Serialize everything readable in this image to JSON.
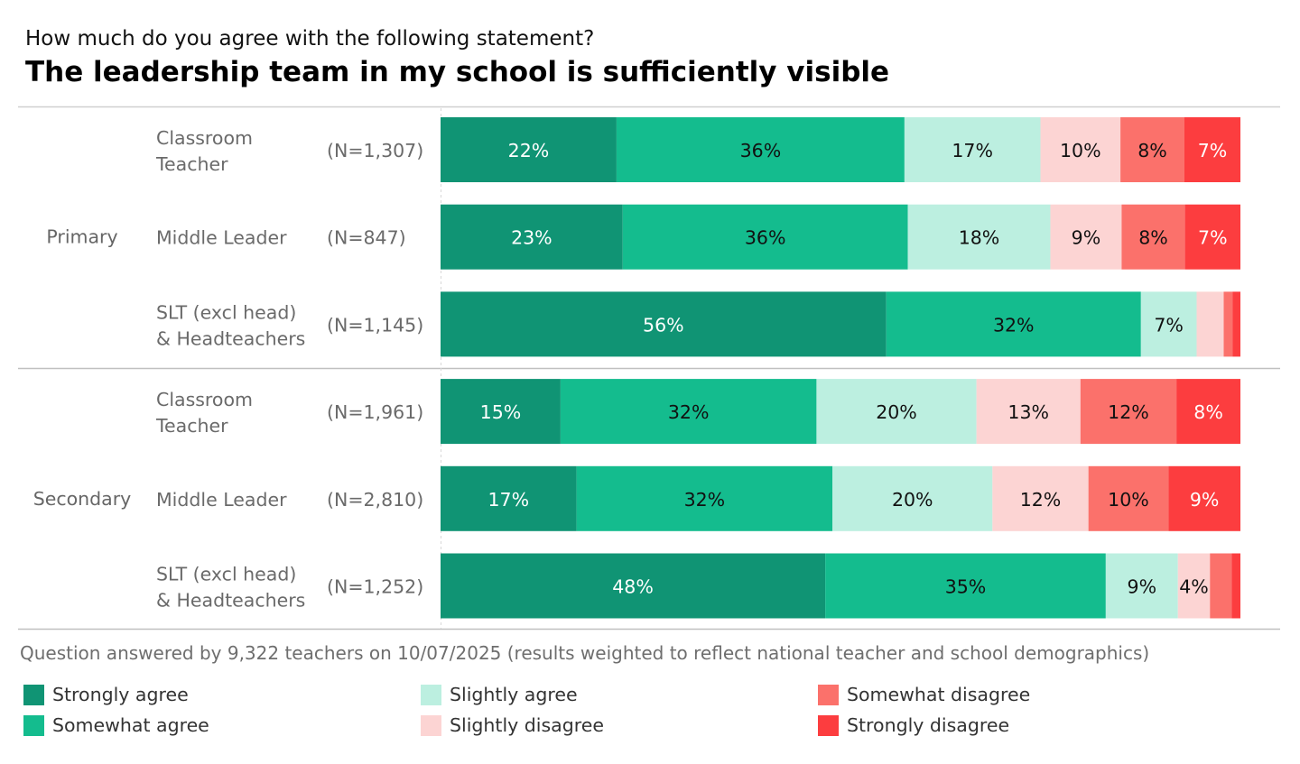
{
  "chart_data": {
    "type": "bar",
    "orientation": "horizontal",
    "stacked": true,
    "subtitle": "How much do you agree with the following statement?",
    "title": "The leadership team in my school is sufficiently visible",
    "groups": [
      {
        "name": "Primary",
        "rows": [
          {
            "label": [
              "Classroom",
              "Teacher"
            ],
            "n": "(N=1,307)",
            "values": [
              22,
              36,
              17,
              10,
              8,
              7
            ]
          },
          {
            "label": [
              "Middle Leader"
            ],
            "n": "(N=847)",
            "values": [
              23,
              36,
              18,
              9,
              8,
              7
            ]
          },
          {
            "label": [
              "SLT (excl head)",
              "& Headteachers"
            ],
            "n": "(N=1,145)",
            "values": [
              56,
              32,
              7,
              3.4,
              1.1,
              1
            ]
          }
        ]
      },
      {
        "name": "Secondary",
        "rows": [
          {
            "label": [
              "Classroom",
              "Teacher"
            ],
            "n": "(N=1,961)",
            "values": [
              15,
              32,
              20,
              13,
              12,
              8
            ]
          },
          {
            "label": [
              "Middle Leader"
            ],
            "n": "(N=2,810)",
            "values": [
              17,
              32,
              20,
              12,
              10,
              9
            ]
          },
          {
            "label": [
              "SLT (excl head)",
              "& Headteachers"
            ],
            "n": "(N=1,252)",
            "values": [
              48,
              35,
              9,
              4,
              2.7,
              1.1
            ]
          }
        ]
      }
    ],
    "series": [
      {
        "name": "Strongly agree",
        "color": "#109474",
        "text": "#ffffff"
      },
      {
        "name": "Somewhat agree",
        "color": "#14bc8e",
        "text": "#111111"
      },
      {
        "name": "Slightly agree",
        "color": "#bcefe0",
        "text": "#111111"
      },
      {
        "name": "Slightly disagree",
        "color": "#fcd4d3",
        "text": "#111111"
      },
      {
        "name": "Somewhat disagree",
        "color": "#fb716b",
        "text": "#111111"
      },
      {
        "name": "Strongly disagree",
        "color": "#fc3d3f",
        "text": "#ffffff"
      }
    ],
    "label_threshold": 3.5,
    "xlim": [
      0,
      100
    ],
    "footnote": "Question answered by 9,322 teachers on 10/07/2025 (results weighted to reflect national teacher and school demographics)"
  }
}
